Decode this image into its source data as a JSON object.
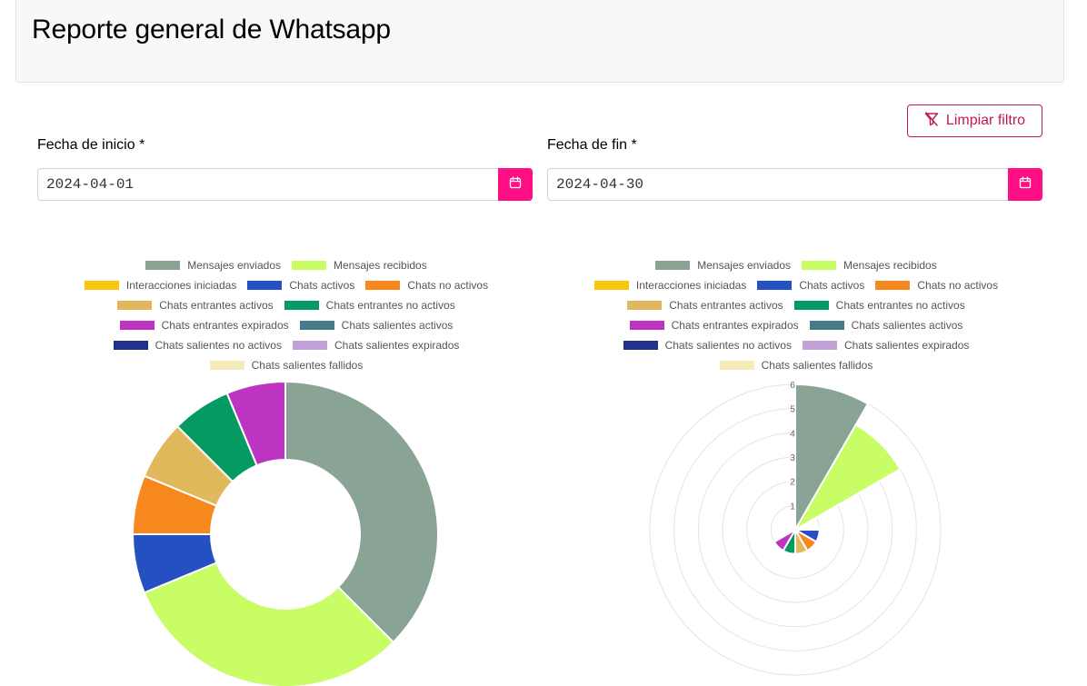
{
  "page": {
    "title": "Reporte general de Whatsapp"
  },
  "filters": {
    "clear_label": "Limpiar filtro",
    "start_label": "Fecha de inicio *",
    "start_value": "2024-04-01",
    "end_label": "Fecha de fin *",
    "end_value": "2024-04-30"
  },
  "colors": {
    "accent": "#ff0f86",
    "clear_border": "#c2185b"
  },
  "legend": [
    {
      "label": "Mensajes enviados",
      "color": "#89a394"
    },
    {
      "label": "Mensajes recibidos",
      "color": "#c9fd66"
    },
    {
      "label": "Interacciones iniciadas",
      "color": "#f8c70b"
    },
    {
      "label": "Chats activos",
      "color": "#2450c2"
    },
    {
      "label": "Chats no activos",
      "color": "#f7881d"
    },
    {
      "label": "Chats entrantes activos",
      "color": "#e1b85c"
    },
    {
      "label": "Chats entrantes no activos",
      "color": "#059a62"
    },
    {
      "label": "Chats entrantes expirados",
      "color": "#bd33c2"
    },
    {
      "label": "Chats salientes activos",
      "color": "#487b8a"
    },
    {
      "label": "Chats salientes no activos",
      "color": "#21328a"
    },
    {
      "label": "Chats salientes expirados",
      "color": "#c3a0d8"
    },
    {
      "label": "Chats salientes fallidos",
      "color": "#f4ebb6"
    }
  ],
  "chart_data": [
    {
      "type": "pie",
      "variant": "doughnut",
      "categories": [
        "Mensajes enviados",
        "Mensajes recibidos",
        "Interacciones iniciadas",
        "Chats activos",
        "Chats no activos",
        "Chats entrantes activos",
        "Chats entrantes no activos",
        "Chats entrantes expirados",
        "Chats salientes activos",
        "Chats salientes no activos",
        "Chats salientes expirados",
        "Chats salientes fallidos"
      ],
      "values": [
        6,
        5,
        0,
        1,
        1,
        1,
        1,
        1,
        0,
        0,
        0,
        0
      ],
      "legend_position": "top"
    },
    {
      "type": "polarArea",
      "categories": [
        "Mensajes enviados",
        "Mensajes recibidos",
        "Interacciones iniciadas",
        "Chats activos",
        "Chats no activos",
        "Chats entrantes activos",
        "Chats entrantes no activos",
        "Chats entrantes expirados",
        "Chats salientes activos",
        "Chats salientes no activos",
        "Chats salientes expirados",
        "Chats salientes fallidos"
      ],
      "values": [
        6,
        5,
        0,
        1,
        1,
        1,
        1,
        1,
        0,
        0,
        0,
        0
      ],
      "r_ticks": [
        "1",
        "2",
        "3",
        "4",
        "5",
        "6"
      ],
      "r_max": 6,
      "legend_position": "top"
    }
  ]
}
